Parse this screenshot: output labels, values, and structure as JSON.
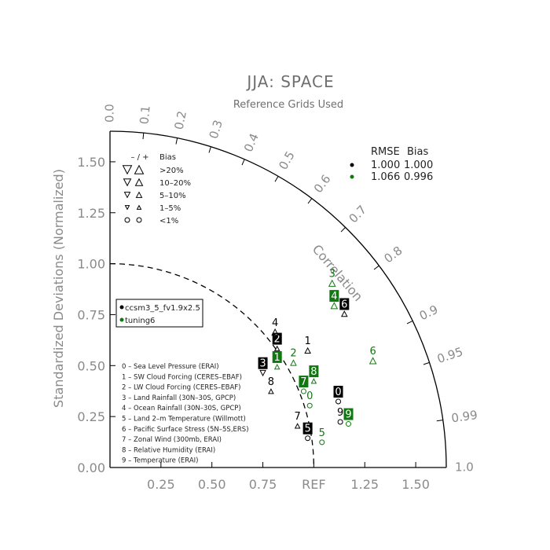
{
  "title": "JJA: SPACE",
  "subtitle": "Reference Grids Used",
  "axes": {
    "ylabel": "Standardized Deviations (Normalized)",
    "x_ticks": [
      "0.25",
      "0.50",
      "0.75",
      "REF",
      "1.25",
      "1.50"
    ],
    "y_ticks": [
      "0.00",
      "0.25",
      "0.50",
      "0.75",
      "1.00",
      "1.25",
      "1.50"
    ],
    "correlation_label": "Correlation",
    "correlation_ticks": [
      "0.0",
      "0.1",
      "0.2",
      "0.3",
      "0.4",
      "0.5",
      "0.6",
      "0.7",
      "0.8",
      "0.9",
      "0.95",
      "0.99",
      "1.0"
    ],
    "colors": {
      "axis": "#000000",
      "labels": "#8a8a8a"
    }
  },
  "bias_legend": {
    "header_sign": "– / +",
    "header_bias": "Bias",
    "rows": [
      ">20%",
      "10–20%",
      "5–10%",
      "1–5%",
      "<1%"
    ]
  },
  "rmse_legend": {
    "header_rmse": "RMSE",
    "header_bias": "Bias",
    "rows": [
      {
        "rmse": "1.000",
        "bias": "1.000",
        "color": "#000000"
      },
      {
        "rmse": "1.066",
        "bias": "0.996",
        "color": "#117711"
      }
    ]
  },
  "case_legend": [
    {
      "name": "ccsm3_5_fv1.9x2.5",
      "color": "#000000"
    },
    {
      "name": "tuning6",
      "color": "#117711"
    }
  ],
  "variables_legend": [
    "0 – Sea Level Pressure (ERAI)",
    "1 – SW Cloud Forcing (CERES–EBAF)",
    "2 – LW Cloud Forcing (CERES–EBAF)",
    "3 – Land Rainfall (30N–30S, GPCP)",
    "4 – Ocean Rainfall (30N–30S, GPCP)",
    "5 – Land 2–m Temperature (Willmott)",
    "6 – Pacific Surface Stress (5N–5S,ERS)",
    "7 – Zonal Wind (300mb, ERAI)",
    "8 – Relative Humidity (ERAI)",
    "9 – Temperature (ERAI)"
  ],
  "chart_data": {
    "type": "scatter",
    "subtype": "taylor-diagram",
    "title": "JJA: SPACE",
    "subtitle": "Reference Grids Used",
    "ylabel": "Standardized Deviations (Normalized)",
    "xlim": [
      0,
      1.65
    ],
    "ylim": [
      0,
      1.65
    ],
    "reference_std": 1.0,
    "series": [
      {
        "name": "ccsm3_5_fv1.9x2.5",
        "color": "#000000",
        "points": [
          {
            "id": "0",
            "x": 1.12,
            "y": 0.37,
            "boxed": true,
            "bias": "<1%",
            "marker": "circle"
          },
          {
            "id": "1",
            "x": 0.97,
            "y": 0.62,
            "boxed": false,
            "bias": "5-10%",
            "marker": "up"
          },
          {
            "id": "2",
            "x": 0.82,
            "y": 0.63,
            "boxed": true,
            "bias": "1-5%",
            "marker": "up"
          },
          {
            "id": "3",
            "x": 0.75,
            "y": 0.51,
            "boxed": true,
            "bias": "5-10%",
            "marker": "down"
          },
          {
            "id": "4",
            "x": 0.81,
            "y": 0.71,
            "boxed": false,
            "bias": "10-20%",
            "marker": "up"
          },
          {
            "id": "5",
            "x": 0.97,
            "y": 0.19,
            "boxed": true,
            "bias": "<1%",
            "marker": "circle"
          },
          {
            "id": "6",
            "x": 1.15,
            "y": 0.8,
            "boxed": true,
            "bias": "5-10%",
            "marker": "up"
          },
          {
            "id": "7",
            "x": 0.92,
            "y": 0.25,
            "boxed": false,
            "bias": "1-5%",
            "marker": "up"
          },
          {
            "id": "8",
            "x": 0.79,
            "y": 0.42,
            "boxed": false,
            "bias": "1-5%",
            "marker": "up"
          },
          {
            "id": "9",
            "x": 1.13,
            "y": 0.27,
            "boxed": false,
            "bias": "<1%",
            "marker": "circle"
          }
        ]
      },
      {
        "name": "tuning6",
        "color": "#117711",
        "points": [
          {
            "id": "0",
            "x": 0.98,
            "y": 0.35,
            "boxed": false,
            "bias": "<1%",
            "marker": "circle"
          },
          {
            "id": "1",
            "x": 0.82,
            "y": 0.54,
            "boxed": true,
            "bias": "1-5%",
            "marker": "up"
          },
          {
            "id": "2",
            "x": 0.9,
            "y": 0.56,
            "boxed": false,
            "bias": "5-10%",
            "marker": "up"
          },
          {
            "id": "3",
            "x": 1.09,
            "y": 0.95,
            "boxed": false,
            "bias": "10-20%",
            "marker": "up"
          },
          {
            "id": "4",
            "x": 1.1,
            "y": 0.84,
            "boxed": true,
            "bias": "10-20%",
            "marker": "up"
          },
          {
            "id": "5",
            "x": 1.04,
            "y": 0.17,
            "boxed": false,
            "bias": "<1%",
            "marker": "circle"
          },
          {
            "id": "6",
            "x": 1.29,
            "y": 0.57,
            "boxed": false,
            "bias": "10-20%",
            "marker": "up"
          },
          {
            "id": "7",
            "x": 0.95,
            "y": 0.42,
            "boxed": true,
            "bias": "<1%",
            "marker": "circle"
          },
          {
            "id": "8",
            "x": 1.0,
            "y": 0.47,
            "boxed": true,
            "bias": "1-5%",
            "marker": "up"
          },
          {
            "id": "9",
            "x": 1.17,
            "y": 0.26,
            "boxed": true,
            "bias": "<1%",
            "marker": "circle"
          }
        ]
      }
    ]
  }
}
